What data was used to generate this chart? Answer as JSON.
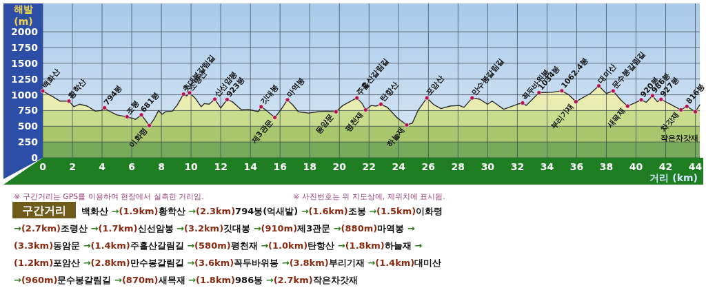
{
  "chart_data": {
    "type": "area",
    "xlabel": "거리 (km)",
    "ylabel": "해발 (m)",
    "xlim": [
      0,
      44.3
    ],
    "ylim": [
      0,
      2450
    ],
    "xticks": [
      0,
      2,
      4,
      6,
      8,
      10,
      12,
      14,
      16,
      18,
      20,
      22,
      24,
      26,
      28,
      30,
      32,
      34,
      36,
      38,
      40,
      42,
      44
    ],
    "yticks": [
      0,
      250,
      500,
      750,
      1000,
      1250,
      1500,
      1750,
      2000
    ],
    "grid": true,
    "x": [
      0,
      0.68,
      1.15,
      1.77,
      2.1,
      2.47,
      3.0,
      3.55,
      3.94,
      4.17,
      4.4,
      5.0,
      5.69,
      6.26,
      6.65,
      7.19,
      7.5,
      7.81,
      8.05,
      8.28,
      8.74,
      9.05,
      9.49,
      9.7,
      9.9,
      10.3,
      10.68,
      10.9,
      11.22,
      11.6,
      12.0,
      12.43,
      12.78,
      13.4,
      13.86,
      14.54,
      14.72,
      15.08,
      15.65,
      16.08,
      16.5,
      16.85,
      17.23,
      17.92,
      18.54,
      19.15,
      19.77,
      20.23,
      20.7,
      21.18,
      21.54,
      21.77,
      22.15,
      22.46,
      22.8,
      23.23,
      23.92,
      24.54,
      24.92,
      25.3,
      25.9,
      26.38,
      26.85,
      27.46,
      28.08,
      28.4,
      28.95,
      29.46,
      30.0,
      30.3,
      31.08,
      32.0,
      32.35,
      32.6,
      33.46,
      34.38,
      35.0,
      35.46,
      35.95,
      36.38,
      36.92,
      37.49,
      38.0,
      38.46,
      39.0,
      39.43,
      39.92,
      40.35,
      40.69,
      41.11,
      41.43,
      41.69,
      42.38,
      43.03,
      43.43,
      44.0,
      44.3
    ],
    "series": [
      {
        "color": "#2b2b2b",
        "values": [
          1060,
          970,
          900,
          900,
          810,
          850,
          820,
          740,
          750,
          794,
          750,
          680,
          650,
          610,
          681,
          510,
          610,
          750,
          690,
          730,
          740,
          830,
          1010,
          980,
          1030,
          940,
          810,
          860,
          850,
          930,
          790,
          923,
          890,
          760,
          770,
          730,
          810,
          750,
          640,
          770,
          920,
          840,
          730,
          710,
          730,
          740,
          730,
          830,
          890,
          950,
          860,
          760,
          830,
          820,
          850,
          800,
          630,
          520,
          550,
          750,
          950,
          840,
          780,
          820,
          830,
          800,
          950,
          930,
          850,
          900,
          770,
          850,
          870,
          830,
          1034,
          1040,
          1062.4,
          1000,
          890,
          950,
          1020,
          1140,
          1020,
          1060,
          910,
          820,
          870,
          920,
          880,
          986,
          890,
          927,
          840,
          760,
          816,
          730,
          840
        ]
      }
    ],
    "annotations": [
      {
        "text": "백화산",
        "x": 0,
        "y": 1060
      },
      {
        "text": "황학산",
        "x": 1.77,
        "y": 900
      },
      {
        "text": "794봉",
        "x": 4.17,
        "y": 794
      },
      {
        "text": "조봉",
        "x": 5.69,
        "y": 650
      },
      {
        "text": "681봉",
        "x": 6.65,
        "y": 681
      },
      {
        "text": "이화령",
        "x": 7.19,
        "y": 510
      },
      {
        "text": "촛대봉갈림길",
        "x": 9.49,
        "y": 1010
      },
      {
        "text": "조령산",
        "x": 9.9,
        "y": 1030
      },
      {
        "text": "신선암봉",
        "x": 11.6,
        "y": 930
      },
      {
        "text": "923봉",
        "x": 12.43,
        "y": 923
      },
      {
        "text": "깃대봉",
        "x": 14.72,
        "y": 810
      },
      {
        "text": "제3관문",
        "x": 15.65,
        "y": 640
      },
      {
        "text": "마역봉",
        "x": 16.5,
        "y": 920
      },
      {
        "text": "동암문",
        "x": 19.77,
        "y": 730
      },
      {
        "text": "주흘산갈림길",
        "x": 21.18,
        "y": 950
      },
      {
        "text": "평천재",
        "x": 21.77,
        "y": 760
      },
      {
        "text": "탄항산",
        "x": 22.8,
        "y": 850
      },
      {
        "text": "하늘재",
        "x": 24.54,
        "y": 520
      },
      {
        "text": "포암산",
        "x": 25.9,
        "y": 950
      },
      {
        "text": "만수봉갈림길",
        "x": 28.95,
        "y": 950
      },
      {
        "text": "꼭두바위봉",
        "x": 32.35,
        "y": 870
      },
      {
        "text": "1034봉",
        "x": 33.46,
        "y": 1034
      },
      {
        "text": "1062.4봉",
        "x": 35.0,
        "y": 1062.4
      },
      {
        "text": "부리기재",
        "x": 35.95,
        "y": 890
      },
      {
        "text": "대미산",
        "x": 37.49,
        "y": 1140
      },
      {
        "text": "문수봉갈림길",
        "x": 38.46,
        "y": 1060
      },
      {
        "text": "새목재",
        "x": 39.43,
        "y": 820
      },
      {
        "text": "920봉",
        "x": 40.35,
        "y": 920
      },
      {
        "text": "986봉",
        "x": 41.11,
        "y": 986
      },
      {
        "text": "927봉",
        "x": 41.69,
        "y": 927
      },
      {
        "text": "차갓재",
        "x": 43.03,
        "y": 760
      },
      {
        "text": "816봉",
        "x": 43.43,
        "y": 816
      },
      {
        "text": "작은차갓재",
        "x": 44.0,
        "y": 730
      },
      "※ 구간거리는 GPS를 이용하여 현장에서 실측한 거리임.",
      "※ 사진번호는 위 지도상에, 제위치에 표시됨.",
      "구간거리",
      "백화산 →(1.9km)황학산 →(2.3km)794봉(억새밭) →(1.6km)조봉 →(1.5km)이화령",
      "→(2.7km)조령산 →(1.7km)신선암봉 →(3.2km)깃대봉 →(910m)제3관문 →(880m)마역봉 →",
      "(3.3km)동암문 →(1.4km)주흘산갈림길 →(580m)평천재 →(1.0km)탄항산 →(1.8km)하늘재 →",
      "(1.2km)포암산 →(2.8km)만수봉갈림길 →(3.6km)꼭두바위봉 →(3.8km)부리기재 →(1.4km)대미산",
      "→(960m)문수봉갈림길 →(870m)새목재 →(1.8km)986봉 →(2.7km)작은차갓재"
    ]
  }
}
